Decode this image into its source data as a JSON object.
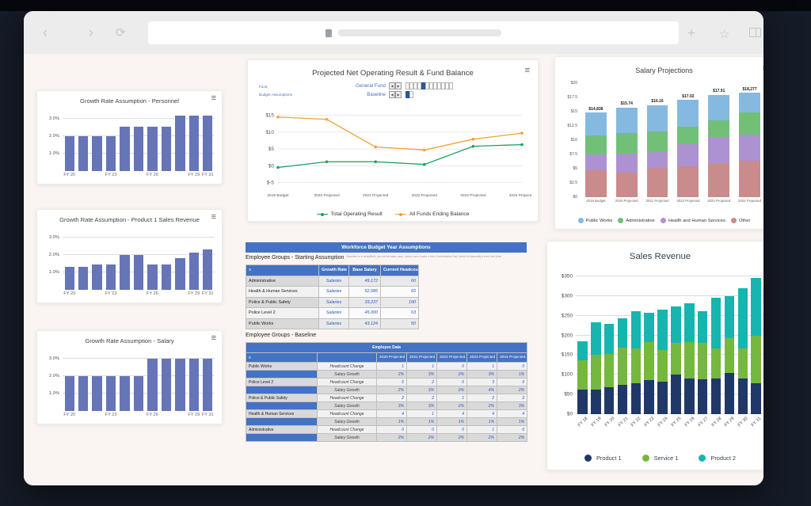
{
  "browser": {
    "icons": {
      "back": "‹",
      "forward": "›",
      "refresh": "⟳",
      "plus": "+",
      "star": "☆"
    }
  },
  "ui": {
    "menu_icon": "≡"
  },
  "banner": {
    "title": "Workforce Budget Year Assumptions"
  },
  "sections": {
    "starting": {
      "title": "Employee Groups - Starting Assumption",
      "note": "Baseline is a simplified, pro-forma base case. Users have made a new Confirmation first, which is basically a new mid-year."
    },
    "baseline": {
      "title": "Employee Groups - Baseline"
    }
  },
  "controls": {
    "fund_label": "Fund",
    "assumption_label": "Budget Assumptions",
    "fund_value": "General Fund",
    "assumption_value": "Baseline",
    "prev": "◀",
    "next": "▶",
    "fund_cells": 12,
    "fund_selected": 4,
    "assumption_cells": 2,
    "assumption_selected": 0
  },
  "tables": {
    "starting": {
      "columns": [
        "Growth Rate",
        "Base Salary",
        "Current Headcount"
      ],
      "rows": [
        {
          "name": "Administrative",
          "growth": "Salaries",
          "base": "49,172",
          "headcount": "60"
        },
        {
          "name": "Health & Human Services",
          "growth": "Salaries",
          "base": "52,585",
          "headcount": "65"
        },
        {
          "name": "Police & Public Safety",
          "growth": "Salaries",
          "base": "33,237",
          "headcount": "190"
        },
        {
          "name": "Police Level 2",
          "growth": "Salaries",
          "base": "45,000",
          "headcount": "63"
        },
        {
          "name": "Public Works",
          "growth": "Salaries",
          "base": "43,124",
          "headcount": "50"
        }
      ]
    },
    "baseline": {
      "banner": "Employee Data",
      "row_labels": {
        "headcount": "Headcount Change",
        "salary": "Salary Growth"
      },
      "columns": [
        "2020 Projected",
        "2021 Projected",
        "2022 Projected",
        "2023 Projected",
        "2024 Projected"
      ],
      "groups": [
        {
          "name": "Public Works",
          "headcount": [
            "1",
            "1",
            "0",
            "1",
            "0"
          ],
          "salary": [
            "2%",
            "3%",
            "2%",
            "3%",
            "1%"
          ]
        },
        {
          "name": "Police Level 2",
          "headcount": [
            "6",
            "2",
            "6",
            "3",
            "6"
          ],
          "salary": [
            "2%",
            "3%",
            "2%",
            "4%",
            "2%"
          ]
        },
        {
          "name": "Police & Public Safety",
          "headcount": [
            "2",
            "2",
            "1",
            "2",
            "2"
          ],
          "salary": [
            "3%",
            "3%",
            "2%",
            "2%",
            "3%"
          ]
        },
        {
          "name": "Health & Human Services",
          "headcount": [
            "4",
            "1",
            "4",
            "4",
            "4"
          ],
          "salary": [
            "1%",
            "1%",
            "1%",
            "1%",
            "1%"
          ]
        },
        {
          "name": "Administrative",
          "headcount": [
            "0",
            "0",
            "0",
            "1",
            "0"
          ],
          "salary": [
            "2%",
            "2%",
            "2%",
            "2%",
            "2%"
          ]
        }
      ]
    }
  },
  "chart_data": [
    {
      "id": "personnel",
      "type": "bar",
      "title": "Growth Rate Assumption - Personnel",
      "color": "#6674b8",
      "ymax": 3.45,
      "grid": true,
      "yticks": [
        {
          "label": "1.0%",
          "v": 1
        },
        {
          "label": "2.0%",
          "v": 2
        },
        {
          "label": "3.0%",
          "v": 3
        }
      ],
      "categories": [
        "FY 20",
        "",
        "",
        "FY 23",
        "",
        "",
        "FY 26",
        "",
        "",
        "FY 29",
        "FY 31"
      ],
      "values": [
        2.0,
        2.0,
        2.0,
        2.0,
        2.55,
        2.55,
        2.55,
        2.55,
        3.2,
        3.2,
        3.2
      ]
    },
    {
      "id": "product1",
      "type": "bar",
      "title": "Growth Rate Assumption - Product 1 Sales Revenue",
      "color": "#6674b8",
      "ymax": 3.45,
      "grid": true,
      "yticks": [
        {
          "label": "1.0%",
          "v": 1
        },
        {
          "label": "2.0%",
          "v": 2
        },
        {
          "label": "3.0%",
          "v": 3
        }
      ],
      "categories": [
        "FY 20",
        "",
        "",
        "FY 23",
        "",
        "",
        "FY 26",
        "",
        "",
        "FY 29",
        "FY 31"
      ],
      "values": [
        1.3,
        1.3,
        1.45,
        1.45,
        2.0,
        2.0,
        1.45,
        1.45,
        1.8,
        2.15,
        2.3
      ]
    },
    {
      "id": "salary",
      "type": "bar",
      "title": "Growth Rate Assumption - Salary",
      "color": "#6674b8",
      "ymax": 3.45,
      "grid": true,
      "yticks": [
        {
          "label": "1.0%",
          "v": 1
        },
        {
          "label": "2.0%",
          "v": 2
        },
        {
          "label": "3.0%",
          "v": 3
        }
      ],
      "categories": [
        "FY 20",
        "",
        "",
        "FY 23",
        "",
        "",
        "FY 26",
        "",
        "",
        "FY 29",
        "FY 31"
      ],
      "values": [
        2.0,
        2.0,
        2.0,
        2.0,
        2.0,
        2.0,
        3.0,
        3.0,
        3.0,
        3.0,
        3.0
      ]
    },
    {
      "id": "netop",
      "type": "line",
      "title": "Projected Net Operating Result & Fund Balance",
      "ymin": -6.5,
      "ymax": 16.8,
      "yticks": [
        {
          "label": "$15",
          "v": 15
        },
        {
          "label": "$10",
          "v": 10
        },
        {
          "label": "$5",
          "v": 5
        },
        {
          "label": "$0",
          "v": 0
        },
        {
          "label": "$-5",
          "v": -5
        }
      ],
      "categories": [
        "2019 Budget",
        "2020 Projected",
        "2021 Projected",
        "2022 Projected",
        "2023 Projected",
        "2024 Projected"
      ],
      "series": [
        {
          "name": "Total Operating Result",
          "color": "#1aa05f",
          "values": [
            -0.5,
            1.2,
            1.2,
            0.4,
            5.8,
            6.3
          ]
        },
        {
          "name": "All Funds Ending Balance",
          "color": "#f0a238",
          "values": [
            14.5,
            13.8,
            5.6,
            4.7,
            7.9,
            9.7
          ]
        }
      ],
      "legend": [
        "Total Operating Result",
        "All Funds Ending Balance"
      ]
    },
    {
      "id": "salaryproj",
      "type": "stacked",
      "title": "Salary Projections",
      "ymax": 20.4,
      "grid": false,
      "yticks": [
        {
          "label": "$0",
          "v": 0
        },
        {
          "label": "$2.5",
          "v": 2.5
        },
        {
          "label": "$5",
          "v": 5
        },
        {
          "label": "$7.5",
          "v": 7.5
        },
        {
          "label": "$10",
          "v": 10
        },
        {
          "label": "$12.5",
          "v": 12.5
        },
        {
          "label": "$15",
          "v": 15
        },
        {
          "label": "$17.5",
          "v": 17.5
        },
        {
          "label": "$20",
          "v": 20
        }
      ],
      "categories": [
        "2019 Budget",
        "2020 Projected",
        "2021 Projected",
        "2022 Projected",
        "2023 Projected",
        "2024 Projected"
      ],
      "totals": [
        "$14,838",
        "$15.74",
        "$16.16",
        "$17.02",
        "$17.91",
        "$18,277"
      ],
      "series": [
        {
          "name": "Other",
          "color": "#c98b8b",
          "values": [
            4.7,
            4.3,
            5.2,
            5.4,
            5.9,
            6.4
          ]
        },
        {
          "name": "Health and Human Services",
          "color": "#ad92d1",
          "values": [
            2.8,
            3.4,
            2.7,
            3.9,
            4.6,
            4.6
          ]
        },
        {
          "name": "Administrative",
          "color": "#72bf78",
          "values": [
            3.3,
            3.6,
            3.6,
            3.1,
            3.0,
            3.9
          ]
        },
        {
          "name": "Public Works",
          "color": "#85b9e0",
          "values": [
            4.04,
            4.44,
            4.66,
            4.62,
            4.41,
            3.38
          ]
        }
      ],
      "legend": [
        "Public Works",
        "Administrative",
        "Health and Human Services",
        "Other"
      ]
    },
    {
      "id": "salesrev",
      "type": "stacked",
      "title": "Sales Revenue",
      "ymax": 362,
      "grid": true,
      "rotate_x": true,
      "yticks": [
        {
          "label": "$0",
          "v": 0
        },
        {
          "label": "$50",
          "v": 50
        },
        {
          "label": "$100",
          "v": 100
        },
        {
          "label": "$150",
          "v": 150
        },
        {
          "label": "$200",
          "v": 200
        },
        {
          "label": "$250",
          "v": 250
        },
        {
          "label": "$300",
          "v": 300
        },
        {
          "label": "$350",
          "v": 350
        }
      ],
      "categories": [
        "FY 18",
        "FY 19",
        "FY 20",
        "FY 21",
        "FY 22",
        "FY 23",
        "FY 24",
        "FY 25",
        "FY 26",
        "FY 27",
        "FY 28",
        "FY 29",
        "FY 30",
        "FY 31"
      ],
      "series": [
        {
          "name": "Product 1",
          "color": "#1f3868",
          "values": [
            62,
            62,
            68,
            75,
            79,
            86,
            83,
            100,
            91,
            89,
            91,
            105,
            91,
            78
          ]
        },
        {
          "name": "Service 1",
          "color": "#76b83f",
          "values": [
            75,
            88,
            85,
            93,
            88,
            98,
            80,
            82,
            92,
            92,
            76,
            89,
            75,
            121
          ]
        },
        {
          "name": "Product 2",
          "color": "#16b5b0",
          "values": [
            48,
            83,
            77,
            75,
            94,
            74,
            102,
            92,
            98,
            80,
            128,
            106,
            154,
            146
          ]
        }
      ],
      "legend": [
        "Product 1",
        "Service 1",
        "Product 2"
      ]
    }
  ]
}
